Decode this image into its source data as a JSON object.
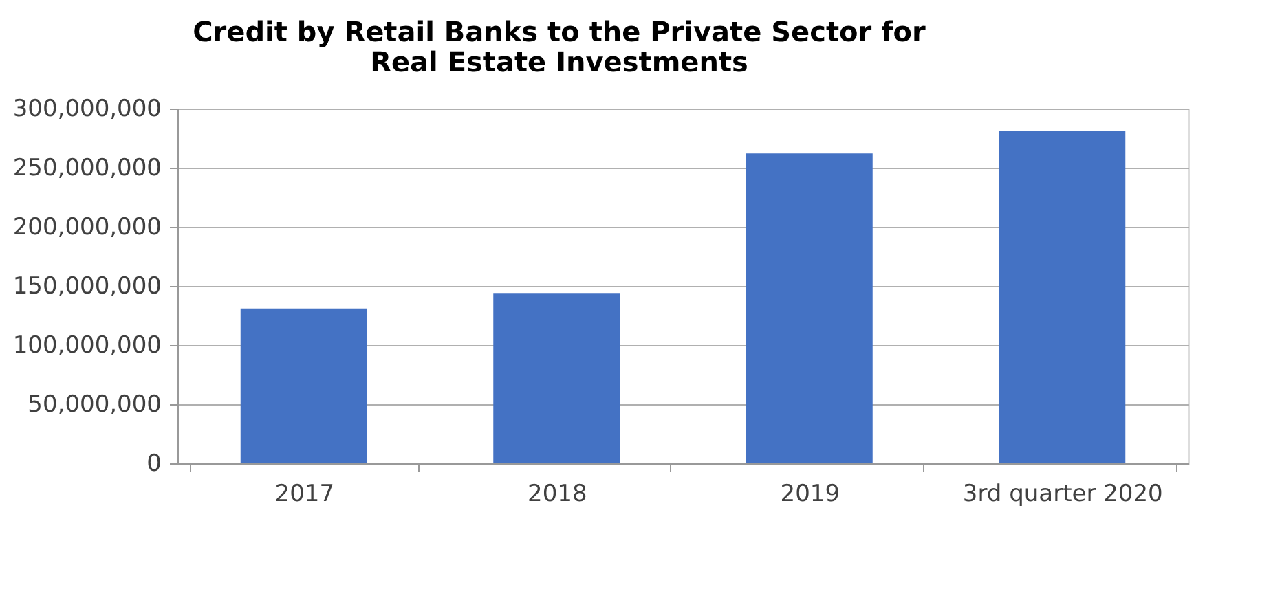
{
  "chart_data": {
    "type": "bar",
    "title": [
      "Credit by Retail Banks to the Private Sector for",
      "Real Estate Investments"
    ],
    "categories": [
      "2017",
      "2018",
      "2019",
      "3rd quarter 2020"
    ],
    "values": [
      131000000,
      144000000,
      262000000,
      281000000
    ],
    "color": "#4472c4",
    "ylim": [
      0,
      300000000
    ],
    "yticks": [
      0,
      {
        "value": 50000000,
        "label": "50,000,000"
      },
      {
        "value": 100000000,
        "label": "100,000,000"
      },
      {
        "value": 150000000,
        "label": "150,000,000"
      },
      {
        "value": 200000000,
        "label": "200,000,000"
      },
      {
        "value": 250000000,
        "label": "250,000,000"
      },
      {
        "value": 300000000,
        "label": "300,000,000"
      }
    ],
    "grid": "y"
  }
}
